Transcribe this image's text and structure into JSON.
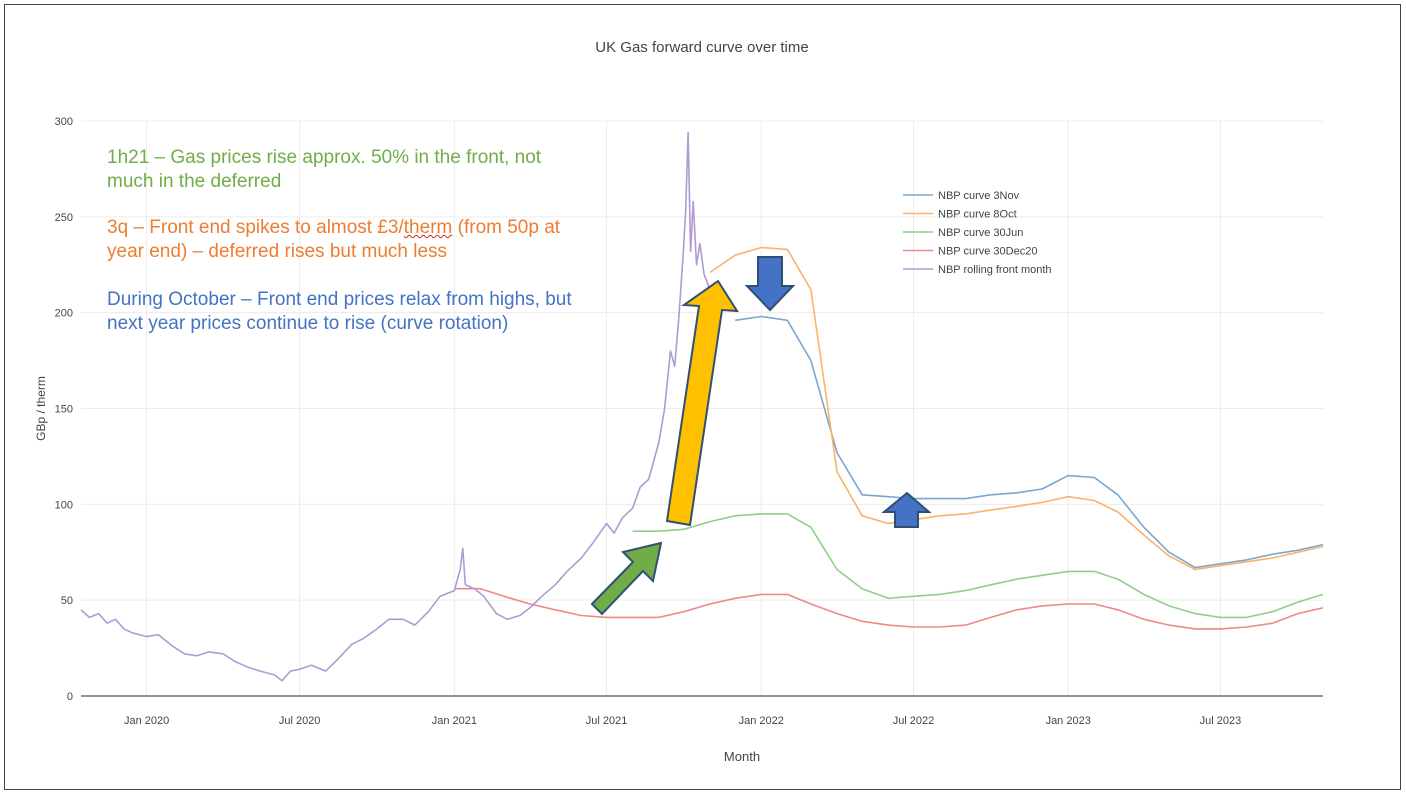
{
  "chart_data": {
    "type": "line",
    "title": "UK Gas forward curve over time",
    "xlabel": "Month",
    "ylabel": "GBp / therm",
    "x_range": [
      "2019-10-15",
      "2023-10-31"
    ],
    "ylim": [
      0,
      300
    ],
    "y_ticks": [
      0,
      50,
      100,
      150,
      200,
      250,
      300
    ],
    "x_ticks": [
      {
        "label": "Jan 2020",
        "date": "2020-01-01"
      },
      {
        "label": "Jul 2020",
        "date": "2020-07-01"
      },
      {
        "label": "Jan 2021",
        "date": "2021-01-01"
      },
      {
        "label": "Jul 2021",
        "date": "2021-07-01"
      },
      {
        "label": "Jan 2022",
        "date": "2022-01-01"
      },
      {
        "label": "Jul 2022",
        "date": "2022-07-01"
      },
      {
        "label": "Jan 2023",
        "date": "2023-01-01"
      },
      {
        "label": "Jul 2023",
        "date": "2023-07-01"
      }
    ],
    "grid": true,
    "legend_position": "top-right",
    "series": [
      {
        "name": "NBP curve 3Nov",
        "color": "#7aa6cf",
        "points": [
          [
            "2021-12-01",
            196
          ],
          [
            "2022-01-01",
            198
          ],
          [
            "2022-02-01",
            196
          ],
          [
            "2022-03-01",
            175
          ],
          [
            "2022-04-01",
            127
          ],
          [
            "2022-05-01",
            105
          ],
          [
            "2022-06-01",
            104
          ],
          [
            "2022-07-01",
            103
          ],
          [
            "2022-08-01",
            103
          ],
          [
            "2022-09-01",
            103
          ],
          [
            "2022-10-01",
            105
          ],
          [
            "2022-11-01",
            106
          ],
          [
            "2022-12-01",
            108
          ],
          [
            "2023-01-01",
            115
          ],
          [
            "2023-02-01",
            114
          ],
          [
            "2023-03-01",
            105
          ],
          [
            "2023-04-01",
            88
          ],
          [
            "2023-05-01",
            75
          ],
          [
            "2023-06-01",
            67
          ],
          [
            "2023-07-01",
            69
          ],
          [
            "2023-08-01",
            71
          ],
          [
            "2023-09-01",
            74
          ],
          [
            "2023-10-01",
            76
          ],
          [
            "2023-10-31",
            79
          ]
        ]
      },
      {
        "name": "NBP curve 8Oct",
        "color": "#fbb36b",
        "points": [
          [
            "2021-11-01",
            221
          ],
          [
            "2021-12-01",
            230
          ],
          [
            "2022-01-01",
            234
          ],
          [
            "2022-02-01",
            233
          ],
          [
            "2022-03-01",
            212
          ],
          [
            "2022-04-01",
            117
          ],
          [
            "2022-05-01",
            94
          ],
          [
            "2022-06-01",
            90
          ],
          [
            "2022-07-01",
            92
          ],
          [
            "2022-08-01",
            94
          ],
          [
            "2022-09-01",
            95
          ],
          [
            "2022-10-01",
            97
          ],
          [
            "2022-11-01",
            99
          ],
          [
            "2022-12-01",
            101
          ],
          [
            "2023-01-01",
            104
          ],
          [
            "2023-02-01",
            102
          ],
          [
            "2023-03-01",
            96
          ],
          [
            "2023-04-01",
            84
          ],
          [
            "2023-05-01",
            73
          ],
          [
            "2023-06-01",
            66
          ],
          [
            "2023-07-01",
            68
          ],
          [
            "2023-08-01",
            70
          ],
          [
            "2023-09-01",
            72
          ],
          [
            "2023-10-01",
            75
          ],
          [
            "2023-10-31",
            78
          ]
        ]
      },
      {
        "name": "NBP curve 30Jun",
        "color": "#90cf8b",
        "points": [
          [
            "2021-08-01",
            86
          ],
          [
            "2021-09-01",
            86
          ],
          [
            "2021-10-01",
            87
          ],
          [
            "2021-11-01",
            91
          ],
          [
            "2021-12-01",
            94
          ],
          [
            "2022-01-01",
            95
          ],
          [
            "2022-02-01",
            95
          ],
          [
            "2022-03-01",
            88
          ],
          [
            "2022-04-01",
            66
          ],
          [
            "2022-05-01",
            56
          ],
          [
            "2022-06-01",
            51
          ],
          [
            "2022-07-01",
            52
          ],
          [
            "2022-08-01",
            53
          ],
          [
            "2022-09-01",
            55
          ],
          [
            "2022-10-01",
            58
          ],
          [
            "2022-11-01",
            61
          ],
          [
            "2022-12-01",
            63
          ],
          [
            "2023-01-01",
            65
          ],
          [
            "2023-02-01",
            65
          ],
          [
            "2023-03-01",
            61
          ],
          [
            "2023-04-01",
            53
          ],
          [
            "2023-05-01",
            47
          ],
          [
            "2023-06-01",
            43
          ],
          [
            "2023-07-01",
            41
          ],
          [
            "2023-08-01",
            41
          ],
          [
            "2023-09-01",
            44
          ],
          [
            "2023-10-01",
            49
          ],
          [
            "2023-10-31",
            53
          ]
        ]
      },
      {
        "name": "NBP curve 30Dec20",
        "color": "#ec8a8a",
        "points": [
          [
            "2021-01-01",
            56
          ],
          [
            "2021-02-01",
            56
          ],
          [
            "2021-03-01",
            52
          ],
          [
            "2021-04-01",
            48
          ],
          [
            "2021-05-01",
            45
          ],
          [
            "2021-06-01",
            42
          ],
          [
            "2021-07-01",
            41
          ],
          [
            "2021-08-01",
            41
          ],
          [
            "2021-09-01",
            41
          ],
          [
            "2021-10-01",
            44
          ],
          [
            "2021-11-01",
            48
          ],
          [
            "2021-12-01",
            51
          ],
          [
            "2022-01-01",
            53
          ],
          [
            "2022-02-01",
            53
          ],
          [
            "2022-03-01",
            48
          ],
          [
            "2022-04-01",
            43
          ],
          [
            "2022-05-01",
            39
          ],
          [
            "2022-06-01",
            37
          ],
          [
            "2022-07-01",
            36
          ],
          [
            "2022-08-01",
            36
          ],
          [
            "2022-09-01",
            37
          ],
          [
            "2022-10-01",
            41
          ],
          [
            "2022-11-01",
            45
          ],
          [
            "2022-12-01",
            47
          ],
          [
            "2023-01-01",
            48
          ],
          [
            "2023-02-01",
            48
          ],
          [
            "2023-03-01",
            45
          ],
          [
            "2023-04-01",
            40
          ],
          [
            "2023-05-01",
            37
          ],
          [
            "2023-06-01",
            35
          ],
          [
            "2023-07-01",
            35
          ],
          [
            "2023-08-01",
            36
          ],
          [
            "2023-09-01",
            38
          ],
          [
            "2023-10-01",
            43
          ],
          [
            "2023-10-31",
            46
          ]
        ]
      },
      {
        "name": "NBP rolling front month",
        "color": "#b09ad3",
        "points": [
          [
            "2019-10-15",
            45
          ],
          [
            "2019-10-25",
            41
          ],
          [
            "2019-11-05",
            43
          ],
          [
            "2019-11-15",
            38
          ],
          [
            "2019-11-25",
            40
          ],
          [
            "2019-12-05",
            35
          ],
          [
            "2019-12-15",
            33
          ],
          [
            "2020-01-01",
            31
          ],
          [
            "2020-01-15",
            32
          ],
          [
            "2020-02-01",
            26
          ],
          [
            "2020-02-15",
            22
          ],
          [
            "2020-03-01",
            21
          ],
          [
            "2020-03-15",
            23
          ],
          [
            "2020-04-01",
            22
          ],
          [
            "2020-04-15",
            18
          ],
          [
            "2020-05-01",
            15
          ],
          [
            "2020-05-15",
            13
          ],
          [
            "2020-06-01",
            11
          ],
          [
            "2020-06-10",
            8
          ],
          [
            "2020-06-20",
            13
          ],
          [
            "2020-07-01",
            14
          ],
          [
            "2020-07-15",
            16
          ],
          [
            "2020-08-01",
            13
          ],
          [
            "2020-08-15",
            19
          ],
          [
            "2020-09-01",
            27
          ],
          [
            "2020-09-15",
            30
          ],
          [
            "2020-10-01",
            35
          ],
          [
            "2020-10-15",
            40
          ],
          [
            "2020-11-01",
            40
          ],
          [
            "2020-11-15",
            37
          ],
          [
            "2020-12-01",
            44
          ],
          [
            "2020-12-15",
            52
          ],
          [
            "2021-01-01",
            55
          ],
          [
            "2021-01-08",
            66
          ],
          [
            "2021-01-11",
            77
          ],
          [
            "2021-01-14",
            58
          ],
          [
            "2021-01-25",
            56
          ],
          [
            "2021-02-05",
            52
          ],
          [
            "2021-02-20",
            43
          ],
          [
            "2021-03-05",
            40
          ],
          [
            "2021-03-20",
            42
          ],
          [
            "2021-04-01",
            46
          ],
          [
            "2021-04-15",
            52
          ],
          [
            "2021-05-01",
            58
          ],
          [
            "2021-05-15",
            65
          ],
          [
            "2021-06-01",
            72
          ],
          [
            "2021-06-15",
            80
          ],
          [
            "2021-07-01",
            90
          ],
          [
            "2021-07-10",
            85
          ],
          [
            "2021-07-20",
            93
          ],
          [
            "2021-08-01",
            98
          ],
          [
            "2021-08-10",
            109
          ],
          [
            "2021-08-20",
            113
          ],
          [
            "2021-09-01",
            132
          ],
          [
            "2021-09-08",
            150
          ],
          [
            "2021-09-15",
            180
          ],
          [
            "2021-09-20",
            172
          ],
          [
            "2021-09-25",
            198
          ],
          [
            "2021-09-30",
            230
          ],
          [
            "2021-10-03",
            252
          ],
          [
            "2021-10-06",
            294
          ],
          [
            "2021-10-09",
            232
          ],
          [
            "2021-10-12",
            258
          ],
          [
            "2021-10-16",
            225
          ],
          [
            "2021-10-20",
            236
          ],
          [
            "2021-10-25",
            220
          ],
          [
            "2021-11-01",
            212
          ]
        ]
      }
    ],
    "annotations": [
      {
        "text": "1h21 – Gas prices rise approx. 50% in the front, not much in the deferred",
        "color": "#70ad47"
      },
      {
        "text": "3q – Front end spikes to almost £3/therm (from 50p at year end) – deferred rises but much less",
        "color": "#ed7d31"
      },
      {
        "text": "During October – Front end prices relax from highs, but next year prices continue to rise (curve rotation)",
        "color": "#4472c4"
      }
    ]
  },
  "annotations": {
    "green_line1": "1h21 – Gas prices rise approx. 50% in the front, not",
    "green_line2": "much in the deferred",
    "orange_line1_a": "3q – Front end spikes to almost £3/",
    "orange_line1_b": "therm",
    "orange_line1_c": " (from 50p at",
    "orange_line2": "year end) – deferred rises but much less",
    "blue_line1": "During October – Front end prices relax from highs, but",
    "blue_line2": "next year prices continue to rise (curve rotation)"
  },
  "arrows": {
    "green_arrow": {
      "color": "#70ad47",
      "direction": "up-right"
    },
    "orange_arrow": {
      "color": "#ffc000",
      "direction": "up"
    },
    "blue_down_arrow": {
      "color": "#4472c4",
      "direction": "down"
    },
    "blue_up_arrow": {
      "color": "#4472c4",
      "direction": "up"
    }
  }
}
